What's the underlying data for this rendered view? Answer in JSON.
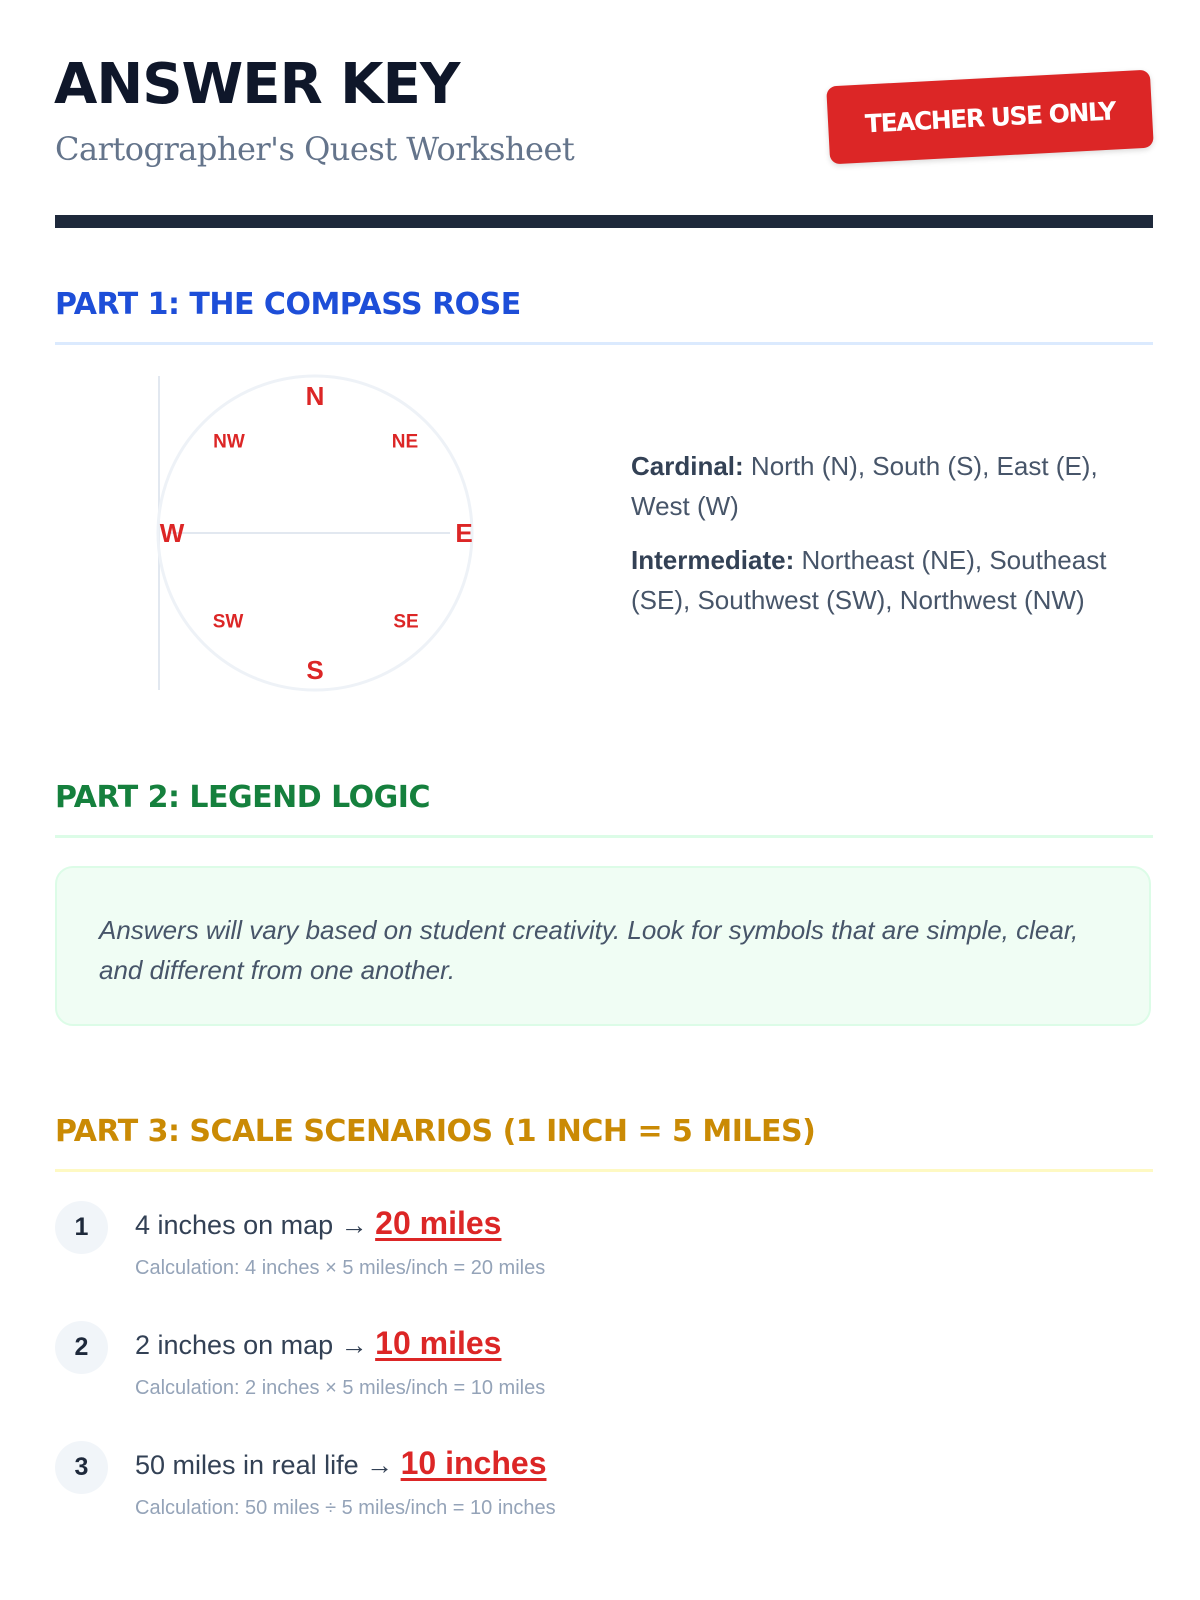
{
  "header": {
    "title": "ANSWER KEY",
    "subtitle": "Cartographer's Quest Worksheet",
    "stamp": "TEACHER USE ONLY"
  },
  "part1": {
    "heading": "PART 1: THE COMPASS ROSE",
    "compass": {
      "n": "N",
      "s": "S",
      "e": "E",
      "w": "W",
      "ne": "NE",
      "nw": "NW",
      "se": "SE",
      "sw": "SW"
    },
    "cardinal_label": "Cardinal:",
    "cardinal_text": "North (N), South (S), East (E), West (W)",
    "intermediate_label": "Intermediate:",
    "intermediate_text": "Northeast (NE), Southeast (SE), Southwest (SW), Northwest (NW)"
  },
  "part2": {
    "heading": "PART 2: LEGEND LOGIC",
    "note": "Answers will vary based on student creativity. Look for symbols that are simple, clear, and different from one another."
  },
  "part3": {
    "heading": "PART 3: SCALE SCENARIOS (1 INCH = 5 MILES)",
    "items": [
      {
        "num": "1",
        "question": "4 inches on map →",
        "answer": "20 miles",
        "calc": "Calculation: 4 inches × 5 miles/inch = 20 miles"
      },
      {
        "num": "2",
        "question": "2 inches on map →",
        "answer": "10 miles",
        "calc": "Calculation: 2 inches × 5 miles/inch = 10 miles"
      },
      {
        "num": "3",
        "question": "50 miles in real life →",
        "answer": "10 inches",
        "calc": "Calculation: 50 miles ÷ 5 miles/inch = 10 inches"
      }
    ]
  },
  "colors": {
    "accent_red": "#dc2626",
    "part1": "#1d4ed8",
    "part2": "#15803d",
    "part3": "#ca8a04",
    "ink": "#0f172a"
  }
}
